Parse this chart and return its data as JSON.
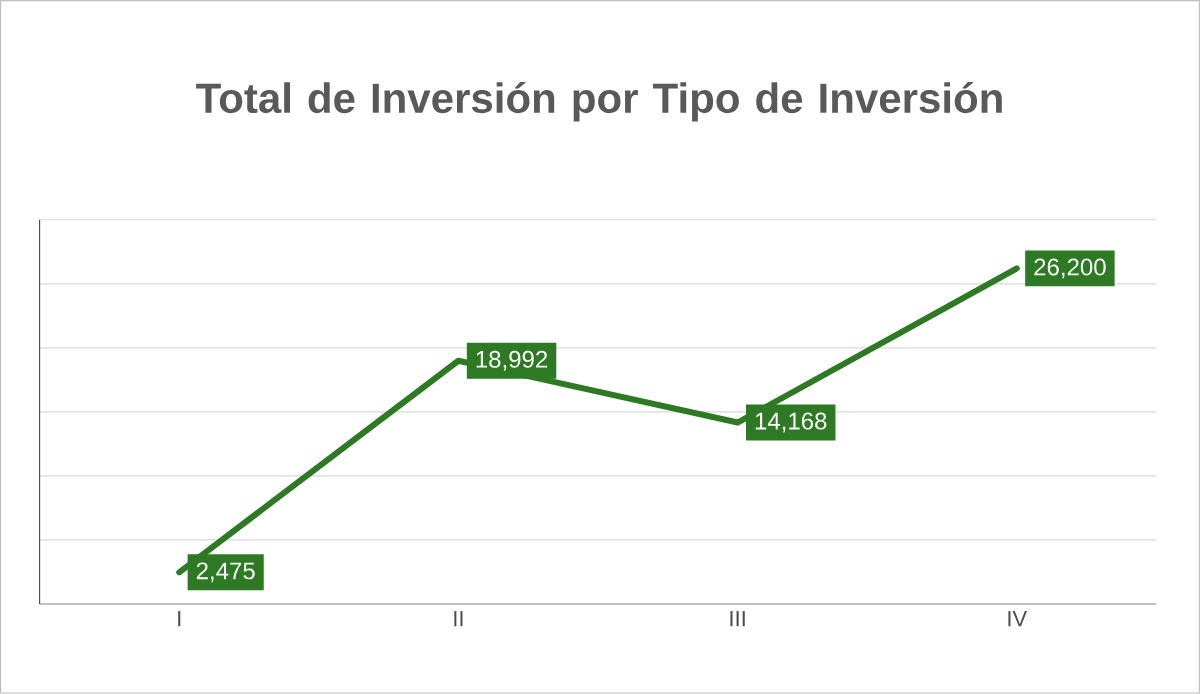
{
  "chart_data": {
    "type": "line",
    "title": "Total de Inversión por Tipo de Inversión",
    "categories": [
      "I",
      "II",
      "III",
      "IV"
    ],
    "values": [
      2475,
      18992,
      14168,
      26200
    ],
    "value_labels": [
      "2,475",
      "18,992",
      "14,168",
      "26,200"
    ],
    "color": "#2e7a24",
    "ylim": [
      0,
      30000
    ],
    "yticks": [
      {
        "value": 0,
        "label": null
      },
      {
        "value": 5000,
        "label": null
      },
      {
        "value": 10000,
        "label": null
      },
      {
        "value": 15000,
        "label": null
      },
      {
        "value": 20000,
        "label": null
      },
      {
        "value": 25000,
        "label": null
      },
      {
        "value": 30000,
        "label": null
      }
    ],
    "grid": "y",
    "tick_labels": "x"
  }
}
